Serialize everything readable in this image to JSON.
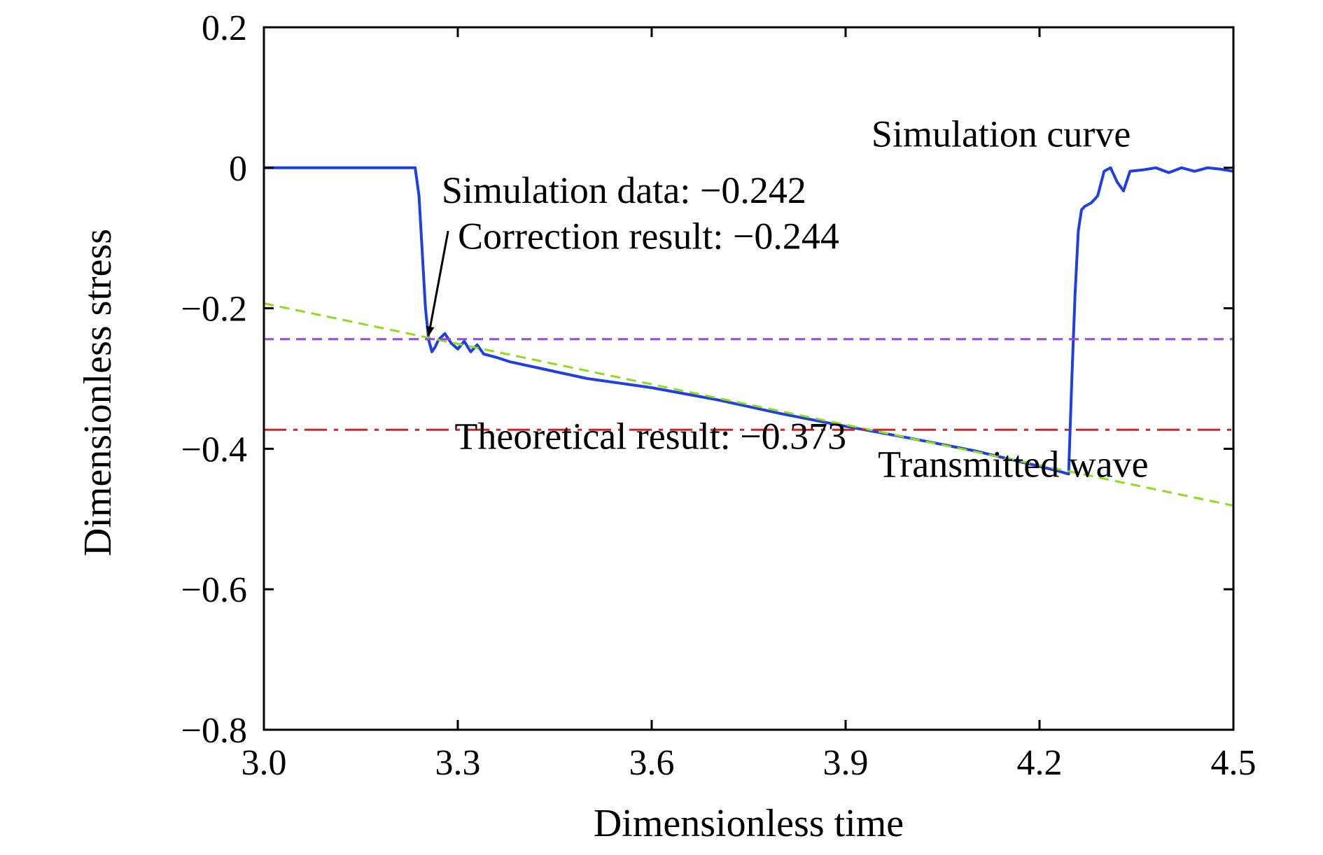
{
  "chart_data": {
    "type": "line",
    "title": "",
    "xlabel": "Dimensionless time",
    "ylabel": "Dimensionless stress",
    "xlim": [
      3.0,
      4.5
    ],
    "ylim": [
      -0.8,
      0.2
    ],
    "x_ticks": [
      3.0,
      3.3,
      3.6,
      3.9,
      4.2,
      4.5
    ],
    "y_ticks": [
      0.2,
      0,
      -0.2,
      -0.4,
      -0.6,
      -0.8
    ],
    "x_tick_labels": [
      "3.0",
      "3.3",
      "3.6",
      "3.9",
      "4.2",
      "4.5"
    ],
    "y_tick_labels": [
      "0.2",
      "0",
      "−0.2",
      "−0.4",
      "−0.6",
      "−0.8"
    ],
    "grid": false,
    "series": [
      {
        "name": "Simulation curve",
        "color": "#1f3fe0",
        "style": "solid",
        "x": [
          3.0,
          3.1,
          3.2,
          3.234,
          3.24,
          3.245,
          3.25,
          3.255,
          3.26,
          3.265,
          3.27,
          3.28,
          3.29,
          3.3,
          3.31,
          3.32,
          3.33,
          3.34,
          3.36,
          3.38,
          3.4,
          3.45,
          3.5,
          3.6,
          3.7,
          3.8,
          3.9,
          4.0,
          4.1,
          4.2,
          4.23,
          4.245,
          4.25,
          4.255,
          4.26,
          4.265,
          4.27,
          4.28,
          4.29,
          4.3,
          4.31,
          4.32,
          4.33,
          4.34,
          4.36,
          4.38,
          4.4,
          4.42,
          4.44,
          4.46,
          4.48,
          4.5
        ],
        "y": [
          0,
          0,
          0,
          0,
          -0.04,
          -0.12,
          -0.2,
          -0.245,
          -0.262,
          -0.255,
          -0.245,
          -0.236,
          -0.25,
          -0.258,
          -0.247,
          -0.262,
          -0.252,
          -0.265,
          -0.27,
          -0.276,
          -0.28,
          -0.29,
          -0.3,
          -0.313,
          -0.33,
          -0.35,
          -0.368,
          -0.385,
          -0.403,
          -0.425,
          -0.432,
          -0.436,
          -0.3,
          -0.18,
          -0.09,
          -0.06,
          -0.055,
          -0.05,
          -0.04,
          -0.005,
          0,
          -0.02,
          -0.033,
          -0.005,
          -0.003,
          0,
          -0.007,
          0,
          -0.005,
          0,
          -0.002,
          -0.005
        ]
      },
      {
        "name": "Transmitted wave",
        "color": "#8fdc1e",
        "style": "dashed",
        "x": [
          3.0,
          4.5
        ],
        "y": [
          -0.193,
          -0.481
        ]
      },
      {
        "name": "Correction result: −0.244",
        "color": "#9a45e6",
        "style": "dashed",
        "x": [
          3.0,
          4.5
        ],
        "y": [
          -0.244,
          -0.244
        ]
      },
      {
        "name": "Theoretical result: −0.373",
        "color": "#e02020",
        "style": "dashdot",
        "x": [
          3.0,
          4.5
        ],
        "y": [
          -0.373,
          -0.373
        ]
      }
    ],
    "annotations": [
      {
        "id": "simulation-curve",
        "text": "Simulation curve",
        "x": 3.94,
        "y": 0.03
      },
      {
        "id": "simulation-data",
        "text": "Simulation data: −0.242",
        "x": 3.275,
        "y": -0.05
      },
      {
        "id": "correction-result",
        "text": "Correction result: −0.244",
        "x": 3.3,
        "y": -0.115
      },
      {
        "id": "theoretical-result",
        "text": "Theoretical result: −0.373",
        "x": 3.295,
        "y": -0.4
      },
      {
        "id": "transmitted-wave",
        "text": "Transmitted wave",
        "x": 3.95,
        "y": -0.44
      }
    ],
    "arrow": {
      "from": [
        3.285,
        -0.09
      ],
      "to": [
        3.255,
        -0.238
      ]
    }
  }
}
